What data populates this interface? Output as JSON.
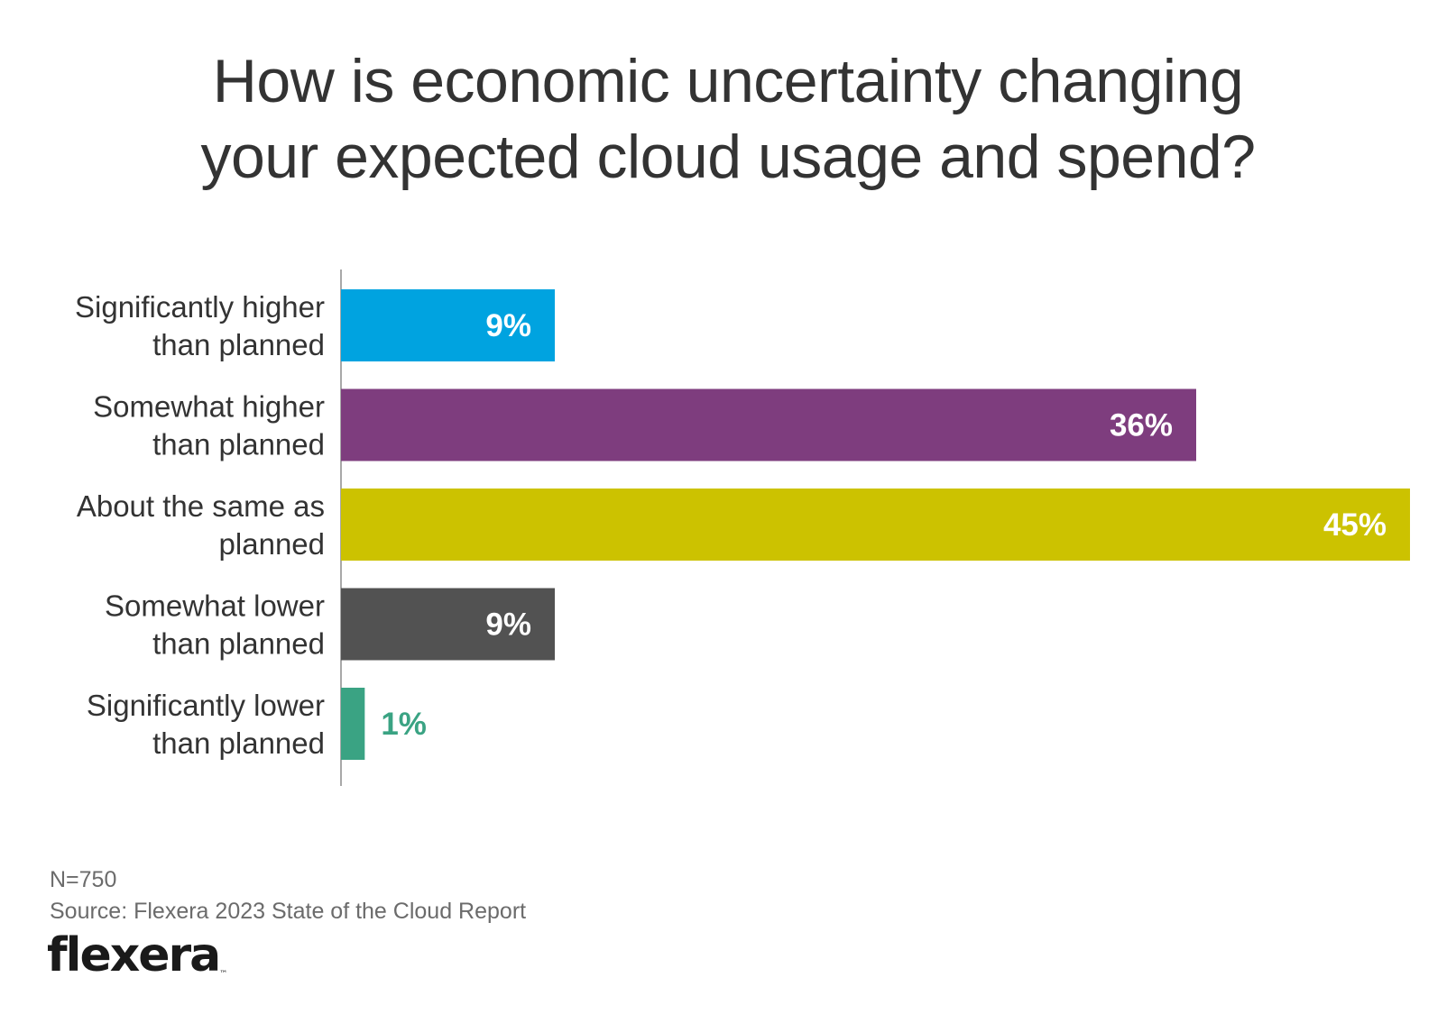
{
  "title_lines": [
    "How is economic uncertainty changing",
    "your expected cloud usage and spend?"
  ],
  "notes": {
    "n": "N=750",
    "source": "Source: Flexera 2023 State of the Cloud Report"
  },
  "brand": {
    "name": "flexera",
    "tm": "™"
  },
  "chart_data": {
    "type": "bar",
    "orientation": "horizontal",
    "title": "How is economic uncertainty changing your expected cloud usage and spend?",
    "xlabel": "",
    "ylabel": "",
    "xlim": [
      0,
      45
    ],
    "grid": false,
    "categories": [
      [
        "Significantly higher",
        "than planned"
      ],
      [
        "Somewhat higher",
        "than planned"
      ],
      [
        "About the same as",
        "planned"
      ],
      [
        "Somewhat lower",
        "than planned"
      ],
      [
        "Significantly lower",
        "than planned"
      ]
    ],
    "values": [
      9,
      36,
      45,
      9,
      1
    ],
    "value_labels": [
      "9%",
      "36%",
      "45%",
      "9%",
      "1%"
    ],
    "colors": [
      "#00a3e0",
      "#7e3d7e",
      "#ccc200",
      "#525252",
      "#3aa383"
    ],
    "label_color_inside": "#ffffff"
  }
}
